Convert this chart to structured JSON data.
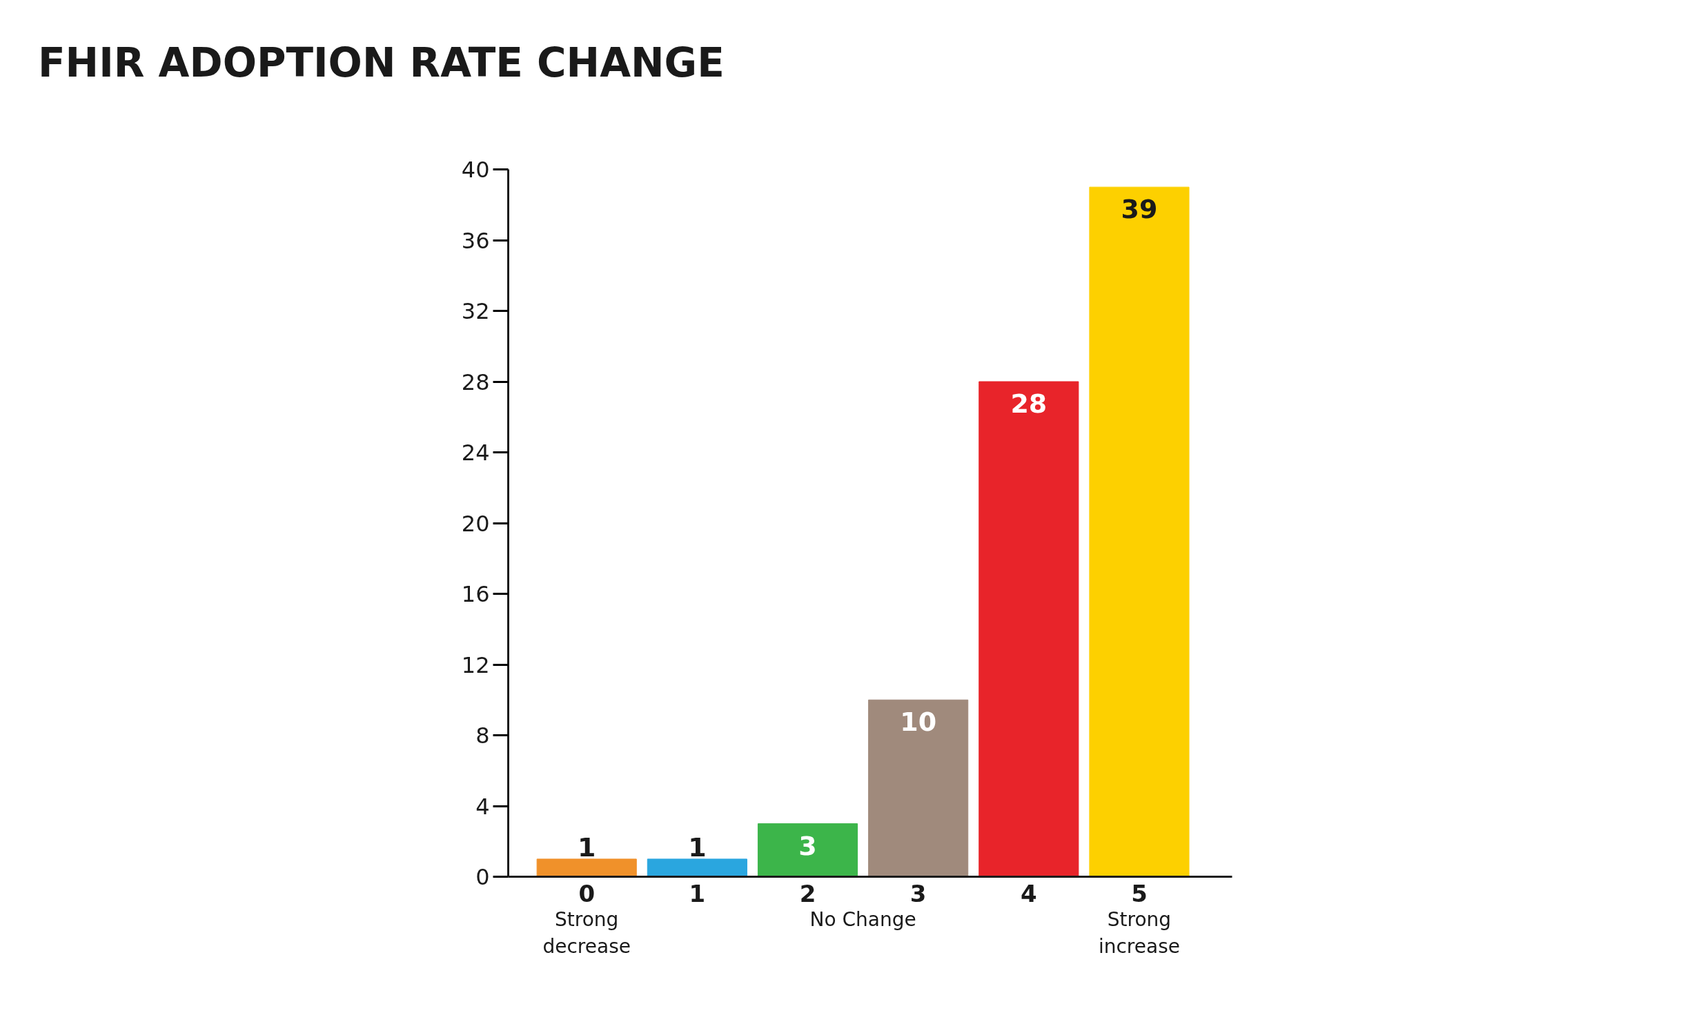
{
  "chart_data": {
    "type": "bar",
    "title": "FHIR ADOPTION RATE CHANGE",
    "categories": [
      "0",
      "1",
      "2",
      "3",
      "4",
      "5"
    ],
    "values": [
      1,
      1,
      3,
      10,
      28,
      39
    ],
    "colors": [
      "#f0912a",
      "#2aa6df",
      "#3cb54a",
      "#a08a7c",
      "#e8242a",
      "#fdd000"
    ],
    "ylim": [
      0,
      40
    ],
    "yticks": [
      0,
      4,
      8,
      12,
      16,
      20,
      24,
      28,
      32,
      36,
      40
    ],
    "data_labels": true,
    "grid": false,
    "annotations": [
      "Strong\ndecrease",
      "No Change",
      "Strong\nincrease"
    ]
  }
}
